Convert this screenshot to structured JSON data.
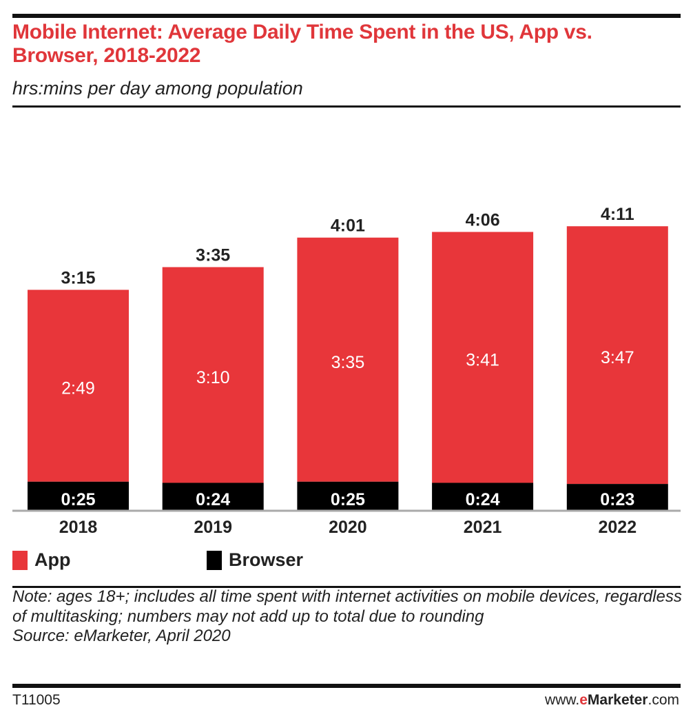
{
  "header": {
    "title": "Mobile Internet: Average Daily Time Spent in the US, App vs. Browser, 2018-2022",
    "subtitle": "hrs:mins per day among population"
  },
  "colors": {
    "app": "#e8363a",
    "browser": "#000000",
    "title": "#e0363a"
  },
  "chart_data": {
    "type": "bar",
    "stacked": true,
    "title": "Mobile Internet: Average Daily Time Spent in the US, App vs. Browser, 2018-2022",
    "subtitle": "hrs:mins per day among population",
    "xlabel": "",
    "ylabel": "hrs:mins per day",
    "categories": [
      "2018",
      "2019",
      "2020",
      "2021",
      "2022"
    ],
    "series": [
      {
        "name": "Browser",
        "color": "#000000",
        "values_minutes": [
          25,
          24,
          25,
          24,
          23
        ],
        "labels": [
          "0:25",
          "0:24",
          "0:25",
          "0:24",
          "0:23"
        ]
      },
      {
        "name": "App",
        "color": "#e8363a",
        "values_minutes": [
          169,
          190,
          215,
          221,
          227
        ],
        "labels": [
          "2:49",
          "3:10",
          "3:35",
          "3:41",
          "3:47"
        ]
      }
    ],
    "totals_minutes": [
      195,
      215,
      241,
      246,
      251
    ],
    "total_labels": [
      "3:15",
      "3:35",
      "4:01",
      "4:06",
      "4:11"
    ],
    "ylim_minutes": [
      0,
      255
    ],
    "grid": false,
    "legend_position": "bottom-left"
  },
  "legend": [
    {
      "label": "App",
      "color": "#e8363a"
    },
    {
      "label": "Browser",
      "color": "#000000"
    }
  ],
  "note": "Note: ages 18+; includes all time spent with internet activities on mobile devices, regardless of multitasking; numbers may not add up to total due to rounding",
  "source": "Source: eMarketer, April 2020",
  "footer": {
    "chart_id": "T11005",
    "url_prefix": "www.",
    "url_e": "e",
    "url_brand": "Marketer",
    "url_suffix": ".com"
  }
}
